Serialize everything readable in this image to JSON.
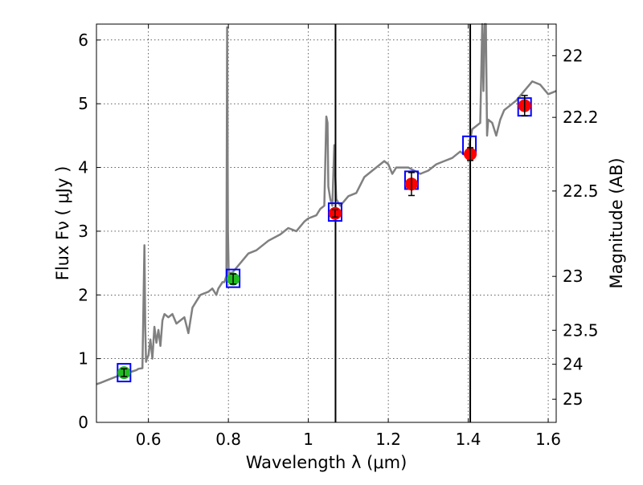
{
  "chart_data": {
    "type": "scatter",
    "xlabel": "Wavelength  λ (μm)",
    "ylabel": "Flux  Fν  ( μJy )",
    "ylabel_right": "Magnitude (AB)",
    "xlim": [
      0.47,
      1.62
    ],
    "ylim": [
      0,
      6.25
    ],
    "grid": true,
    "x_ticks": [
      0.6,
      0.8,
      1.0,
      1.2,
      1.4,
      1.6
    ],
    "x_tick_labels": [
      "0.6",
      "0.8",
      "1",
      "1.2",
      "1.4",
      "1.6"
    ],
    "y_ticks": [
      0,
      1,
      2,
      3,
      4,
      5,
      6
    ],
    "y_tick_labels": [
      "0",
      "1",
      "2",
      "3",
      "4",
      "5",
      "6"
    ],
    "right_ticks": [
      {
        "mag": 22,
        "label": "22"
      },
      {
        "mag": 22.2,
        "label": "22.2"
      },
      {
        "mag": 22.5,
        "label": "22.5"
      },
      {
        "mag": 23,
        "label": "23"
      },
      {
        "mag": 23.5,
        "label": "23.5"
      },
      {
        "mag": 24,
        "label": "24"
      },
      {
        "mag": 25,
        "label": "25"
      }
    ],
    "vertical_lines": [
      1.068,
      1.405
    ],
    "model_spectrum": {
      "color": "#808080",
      "x": [
        0.47,
        0.48,
        0.5,
        0.52,
        0.54,
        0.56,
        0.57,
        0.575,
        0.585,
        0.59,
        0.592,
        0.594,
        0.596,
        0.6,
        0.605,
        0.61,
        0.615,
        0.62,
        0.625,
        0.63,
        0.635,
        0.64,
        0.65,
        0.66,
        0.67,
        0.68,
        0.69,
        0.7,
        0.71,
        0.72,
        0.73,
        0.75,
        0.76,
        0.77,
        0.775,
        0.78,
        0.785,
        0.79,
        0.795,
        0.797,
        0.799,
        0.801,
        0.805,
        0.81,
        0.83,
        0.85,
        0.87,
        0.9,
        0.93,
        0.95,
        0.97,
        0.99,
        1.0,
        1.02,
        1.03,
        1.04,
        1.045,
        1.048,
        1.05,
        1.055,
        1.06,
        1.065,
        1.068,
        1.07,
        1.075,
        1.08,
        1.1,
        1.12,
        1.14,
        1.16,
        1.18,
        1.19,
        1.2,
        1.21,
        1.22,
        1.25,
        1.28,
        1.3,
        1.32,
        1.34,
        1.36,
        1.38,
        1.39,
        1.4,
        1.405,
        1.41,
        1.42,
        1.43,
        1.435,
        1.438,
        1.441,
        1.444,
        1.447,
        1.45,
        1.46,
        1.47,
        1.48,
        1.49,
        1.5,
        1.52,
        1.54,
        1.56,
        1.58,
        1.6,
        1.62
      ],
      "y": [
        0.6,
        0.62,
        0.67,
        0.72,
        0.76,
        0.8,
        0.82,
        0.84,
        0.85,
        2.78,
        1.5,
        0.95,
        1.0,
        1.05,
        1.3,
        1.0,
        1.5,
        1.25,
        1.45,
        1.2,
        1.6,
        1.7,
        1.65,
        1.7,
        1.55,
        1.6,
        1.65,
        1.4,
        1.8,
        1.9,
        2.0,
        2.05,
        2.1,
        2.0,
        2.1,
        2.15,
        2.2,
        2.2,
        2.3,
        6.2,
        3.0,
        2.3,
        2.35,
        2.35,
        2.5,
        2.65,
        2.7,
        2.85,
        2.95,
        3.05,
        3.0,
        3.15,
        3.2,
        3.25,
        3.35,
        3.4,
        4.8,
        4.7,
        3.7,
        3.5,
        3.4,
        4.35,
        3.8,
        3.5,
        3.45,
        3.4,
        3.55,
        3.6,
        3.85,
        3.95,
        4.05,
        4.1,
        4.05,
        3.9,
        4.0,
        4.0,
        3.9,
        3.95,
        4.05,
        4.1,
        4.15,
        4.25,
        4.2,
        4.2,
        4.45,
        4.6,
        4.65,
        4.7,
        6.25,
        5.2,
        6.25,
        6.25,
        4.5,
        4.75,
        4.7,
        4.5,
        4.75,
        4.9,
        4.95,
        5.05,
        5.2,
        5.35,
        5.3,
        5.15,
        5.2
      ]
    },
    "model_photometry": {
      "color": "#0000ff",
      "points": [
        {
          "x": 0.539,
          "y": 0.78
        },
        {
          "x": 0.812,
          "y": 2.26
        },
        {
          "x": 1.067,
          "y": 3.3
        },
        {
          "x": 1.258,
          "y": 3.8
        },
        {
          "x": 1.403,
          "y": 4.35
        },
        {
          "x": 1.541,
          "y": 4.95
        }
      ]
    },
    "observed_optical": {
      "color": "#22bb22",
      "points": [
        {
          "x": 0.539,
          "y": 0.78,
          "err": 0.06
        },
        {
          "x": 0.812,
          "y": 2.25,
          "err": 0.08
        }
      ]
    },
    "observed_nir": {
      "color": "#ff0000",
      "points": [
        {
          "x": 1.067,
          "y": 3.28,
          "err": 0.06
        },
        {
          "x": 1.258,
          "y": 3.74,
          "err": 0.18
        },
        {
          "x": 1.405,
          "y": 4.21,
          "err": 0.1
        },
        {
          "x": 1.541,
          "y": 4.97,
          "err": 0.16
        }
      ]
    }
  }
}
